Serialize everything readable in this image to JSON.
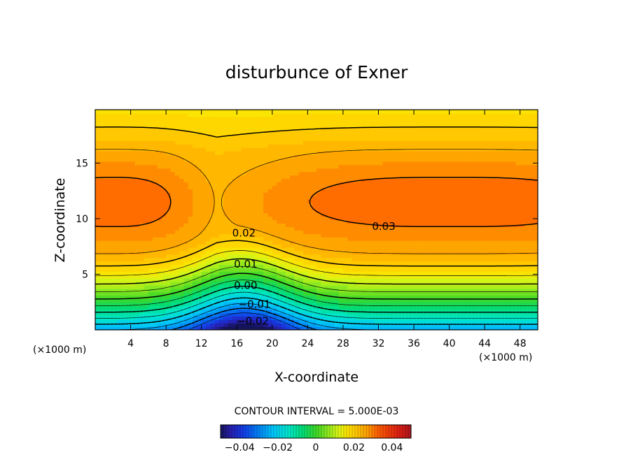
{
  "chart_data": {
    "type": "heatmap",
    "title": "disturbunce of Exner",
    "xlabel": "X-coordinate",
    "ylabel": "Z-coordinate",
    "x_unit": "(×1000 m)",
    "xlim": [
      0,
      50
    ],
    "ylim": [
      0,
      19.8
    ],
    "x_ticks": [
      4,
      8,
      12,
      16,
      20,
      24,
      28,
      32,
      36,
      40,
      44,
      48
    ],
    "y_ticks": [
      5,
      10,
      15
    ],
    "contour_interval_text": "CONTOUR INTERVAL = 5.000E-03",
    "contour_labels": [
      {
        "text": "0.02",
        "x": 16.8,
        "z": 8.7
      },
      {
        "text": "0.03",
        "x": 32.6,
        "z": 9.3
      },
      {
        "text": "0.01",
        "x": 17.0,
        "z": 5.9
      },
      {
        "text": "0.00",
        "x": 17.0,
        "z": 4.0
      },
      {
        "text": "-0.01",
        "x": 18.0,
        "z": 2.3
      },
      {
        "text": "-0.02",
        "x": 17.8,
        "z": 0.8
      }
    ],
    "colorbar": {
      "range": [
        -0.05,
        0.05
      ],
      "tick_values": [
        -0.04,
        -0.02,
        0,
        0.02,
        0.04
      ],
      "tick_labels": [
        "-0.04",
        "-0.02",
        "0",
        "0.02",
        "0.04"
      ]
    }
  }
}
